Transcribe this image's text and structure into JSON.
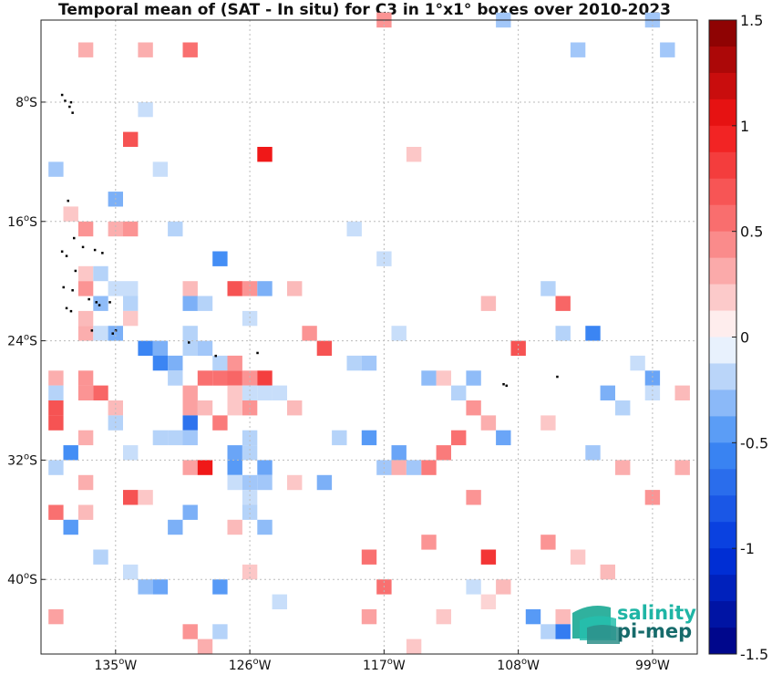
{
  "chart_data": {
    "type": "heatmap",
    "title": "Temporal mean of (SAT - In situ) for C3 in 1°x1° boxes over 2010-2023",
    "x_axis": {
      "range": [
        -140,
        -96
      ],
      "ticks": [
        {
          "value": -135,
          "label": "135"
        },
        {
          "value": -126,
          "label": "126"
        },
        {
          "value": -117,
          "label": "117"
        },
        {
          "value": -108,
          "label": "108"
        },
        {
          "value": -99,
          "label": "99"
        }
      ],
      "suffix": "W"
    },
    "y_axis": {
      "range": [
        -45,
        -2.5
      ],
      "ticks": [
        {
          "value": -8,
          "label": "8"
        },
        {
          "value": -16,
          "label": "16"
        },
        {
          "value": -24,
          "label": "24"
        },
        {
          "value": -32,
          "label": "32"
        },
        {
          "value": -40,
          "label": "40"
        }
      ],
      "suffix": "S"
    },
    "grid": true,
    "colorbar": {
      "range": [
        -1.5,
        1.5
      ],
      "levels": 24,
      "ticks": [
        {
          "value": 1.5,
          "label": "1.5"
        },
        {
          "value": 1,
          "label": "1"
        },
        {
          "value": 0.5,
          "label": "0.5"
        },
        {
          "value": 0,
          "label": "0"
        },
        {
          "value": -0.5,
          "label": "-0.5"
        },
        {
          "value": -1,
          "label": "-1"
        },
        {
          "value": -1.5,
          "label": "-1.5"
        }
      ],
      "placement": "right"
    },
    "cells": [
      [
        -117,
        -2.5,
        0.4
      ],
      [
        -109,
        -2.5,
        -0.25
      ],
      [
        -99,
        -2.5,
        -0.25
      ],
      [
        -137,
        -4.5,
        0.3
      ],
      [
        -133,
        -4.5,
        0.3
      ],
      [
        -130,
        -4.5,
        0.55
      ],
      [
        -104,
        -4.5,
        -0.25
      ],
      [
        -98,
        -4.5,
        -0.25
      ],
      [
        -133,
        -8.5,
        -0.15
      ],
      [
        -134,
        -10.5,
        0.7
      ],
      [
        -125,
        -11.5,
        1.0
      ],
      [
        -115,
        -11.5,
        0.2
      ],
      [
        -139,
        -12.5,
        -0.25
      ],
      [
        -132,
        -12.5,
        -0.15
      ],
      [
        -135,
        -14.5,
        -0.35
      ],
      [
        -138,
        -15.5,
        0.2
      ],
      [
        -137,
        -16.5,
        0.4
      ],
      [
        -135,
        -16.5,
        0.3
      ],
      [
        -134,
        -16.5,
        0.4
      ],
      [
        -131,
        -16.5,
        -0.2
      ],
      [
        -119,
        -16.5,
        -0.15
      ],
      [
        -128,
        -18.5,
        -0.5
      ],
      [
        -117,
        -18.5,
        -0.15
      ],
      [
        -137,
        -19.5,
        0.2
      ],
      [
        -136,
        -19.5,
        -0.2
      ],
      [
        -137,
        -20.5,
        0.4
      ],
      [
        -135,
        -20.5,
        -0.15
      ],
      [
        -134,
        -20.5,
        -0.15
      ],
      [
        -130,
        -20.5,
        0.25
      ],
      [
        -127,
        -20.5,
        0.7
      ],
      [
        -126,
        -20.5,
        0.4
      ],
      [
        -125,
        -20.5,
        -0.35
      ],
      [
        -123,
        -20.5,
        0.25
      ],
      [
        -106,
        -20.5,
        -0.2
      ],
      [
        -136,
        -21.5,
        -0.3
      ],
      [
        -134,
        -21.5,
        -0.2
      ],
      [
        -130,
        -21.5,
        -0.35
      ],
      [
        -129,
        -21.5,
        -0.2
      ],
      [
        -110,
        -21.5,
        0.25
      ],
      [
        -105,
        -21.5,
        0.6
      ],
      [
        -137,
        -22.5,
        0.25
      ],
      [
        -134,
        -22.5,
        0.2
      ],
      [
        -126,
        -22.5,
        -0.15
      ],
      [
        -137,
        -23.5,
        0.3
      ],
      [
        -136,
        -23.5,
        -0.15
      ],
      [
        -135,
        -23.5,
        -0.35
      ],
      [
        -130,
        -23.5,
        -0.2
      ],
      [
        -122,
        -23.5,
        0.4
      ],
      [
        -116,
        -23.5,
        -0.15
      ],
      [
        -105,
        -23.5,
        -0.2
      ],
      [
        -103,
        -23.5,
        -0.55
      ],
      [
        -133,
        -24.5,
        -0.55
      ],
      [
        -132,
        -24.5,
        -0.35
      ],
      [
        -130,
        -24.5,
        -0.2
      ],
      [
        -129,
        -24.5,
        -0.25
      ],
      [
        -121,
        -24.5,
        0.7
      ],
      [
        -108,
        -24.5,
        0.7
      ],
      [
        -132,
        -25.5,
        -0.55
      ],
      [
        -131,
        -25.5,
        -0.35
      ],
      [
        -128,
        -25.5,
        -0.2
      ],
      [
        -127,
        -25.5,
        0.4
      ],
      [
        -119,
        -25.5,
        -0.2
      ],
      [
        -118,
        -25.5,
        -0.25
      ],
      [
        -100,
        -25.5,
        -0.15
      ],
      [
        -131,
        -26.5,
        -0.2
      ],
      [
        -139,
        -26.5,
        0.3
      ],
      [
        -137,
        -26.5,
        0.4
      ],
      [
        -129,
        -26.5,
        0.55
      ],
      [
        -128,
        -26.5,
        0.55
      ],
      [
        -127,
        -26.5,
        0.6
      ],
      [
        -126,
        -26.5,
        0.4
      ],
      [
        -125,
        -26.5,
        0.8
      ],
      [
        -114,
        -26.5,
        -0.3
      ],
      [
        -113,
        -26.5,
        0.2
      ],
      [
        -111,
        -26.5,
        -0.3
      ],
      [
        -99,
        -26.5,
        -0.4
      ],
      [
        -139,
        -27.5,
        -0.2
      ],
      [
        -137,
        -27.5,
        0.4
      ],
      [
        -136,
        -27.5,
        0.6
      ],
      [
        -130,
        -27.5,
        0.35
      ],
      [
        -127,
        -27.5,
        0.2
      ],
      [
        -126,
        -27.5,
        -0.15
      ],
      [
        -125,
        -27.5,
        -0.15
      ],
      [
        -124,
        -27.5,
        -0.15
      ],
      [
        -112,
        -27.5,
        -0.2
      ],
      [
        -102,
        -27.5,
        -0.35
      ],
      [
        -99,
        -27.5,
        -0.15
      ],
      [
        -97,
        -27.5,
        0.25
      ],
      [
        -139,
        -28.5,
        0.7
      ],
      [
        -135,
        -28.5,
        0.25
      ],
      [
        -130,
        -28.5,
        0.35
      ],
      [
        -129,
        -28.5,
        0.25
      ],
      [
        -127,
        -28.5,
        0.2
      ],
      [
        -126,
        -28.5,
        0.4
      ],
      [
        -123,
        -28.5,
        0.25
      ],
      [
        -111,
        -28.5,
        0.4
      ],
      [
        -101,
        -28.5,
        -0.2
      ],
      [
        -139,
        -29.5,
        0.7
      ],
      [
        -135,
        -29.5,
        -0.2
      ],
      [
        -130,
        -29.5,
        -0.65
      ],
      [
        -128,
        -29.5,
        0.5
      ],
      [
        -110,
        -29.5,
        0.3
      ],
      [
        -106,
        -29.5,
        0.2
      ],
      [
        -137,
        -30.5,
        0.3
      ],
      [
        -132,
        -30.5,
        -0.2
      ],
      [
        -131,
        -30.5,
        -0.2
      ],
      [
        -130,
        -30.5,
        -0.25
      ],
      [
        -126,
        -30.5,
        -0.2
      ],
      [
        -120,
        -30.5,
        -0.2
      ],
      [
        -118,
        -30.5,
        -0.45
      ],
      [
        -112,
        -30.5,
        0.55
      ],
      [
        -109,
        -30.5,
        -0.4
      ],
      [
        -138,
        -31.5,
        -0.5
      ],
      [
        -134,
        -31.5,
        -0.15
      ],
      [
        -127,
        -31.5,
        -0.4
      ],
      [
        -126,
        -31.5,
        -0.2
      ],
      [
        -116,
        -31.5,
        -0.4
      ],
      [
        -113,
        -31.5,
        0.5
      ],
      [
        -103,
        -31.5,
        -0.25
      ],
      [
        -139,
        -32.5,
        -0.2
      ],
      [
        -130,
        -32.5,
        0.35
      ],
      [
        -129,
        -32.5,
        1.0
      ],
      [
        -127,
        -32.5,
        -0.45
      ],
      [
        -125,
        -32.5,
        -0.4
      ],
      [
        -117,
        -32.5,
        -0.25
      ],
      [
        -116,
        -32.5,
        0.3
      ],
      [
        -115,
        -32.5,
        -0.25
      ],
      [
        -114,
        -32.5,
        0.5
      ],
      [
        -101,
        -32.5,
        0.3
      ],
      [
        -97,
        -32.5,
        0.3
      ],
      [
        -137,
        -33.5,
        0.3
      ],
      [
        -127,
        -33.5,
        -0.15
      ],
      [
        -126,
        -33.5,
        -0.25
      ],
      [
        -125,
        -33.5,
        -0.25
      ],
      [
        -123,
        -33.5,
        0.2
      ],
      [
        -121,
        -33.5,
        -0.35
      ],
      [
        -134,
        -34.5,
        0.7
      ],
      [
        -133,
        -34.5,
        0.2
      ],
      [
        -126,
        -34.5,
        -0.15
      ],
      [
        -111,
        -34.5,
        0.4
      ],
      [
        -99,
        -34.5,
        0.4
      ],
      [
        -139,
        -35.5,
        0.55
      ],
      [
        -137,
        -35.5,
        0.25
      ],
      [
        -130,
        -35.5,
        -0.35
      ],
      [
        -126,
        -35.5,
        -0.2
      ],
      [
        -138,
        -36.5,
        -0.45
      ],
      [
        -131,
        -36.5,
        -0.35
      ],
      [
        -127,
        -36.5,
        0.25
      ],
      [
        -125,
        -36.5,
        -0.3
      ],
      [
        -114,
        -37.5,
        0.4
      ],
      [
        -106,
        -37.5,
        0.4
      ],
      [
        -136,
        -38.5,
        -0.2
      ],
      [
        -118,
        -38.5,
        0.55
      ],
      [
        -110,
        -38.5,
        0.85
      ],
      [
        -104,
        -38.5,
        0.2
      ],
      [
        -134,
        -39.5,
        -0.15
      ],
      [
        -126,
        -39.5,
        0.2
      ],
      [
        -102,
        -39.5,
        0.25
      ],
      [
        -133,
        -40.5,
        -0.3
      ],
      [
        -132,
        -40.5,
        -0.4
      ],
      [
        -128,
        -40.5,
        -0.45
      ],
      [
        -117,
        -40.5,
        0.55
      ],
      [
        -111,
        -40.5,
        -0.15
      ],
      [
        -109,
        -40.5,
        0.25
      ],
      [
        -124,
        -41.5,
        -0.15
      ],
      [
        -110,
        -41.5,
        0.15
      ],
      [
        -139,
        -42.5,
        0.35
      ],
      [
        -118,
        -42.5,
        0.35
      ],
      [
        -113,
        -42.5,
        0.2
      ],
      [
        -107,
        -42.5,
        -0.45
      ],
      [
        -105,
        -42.5,
        0.25
      ],
      [
        -130,
        -43.5,
        0.4
      ],
      [
        -128,
        -43.5,
        -0.2
      ],
      [
        -106,
        -43.5,
        -0.2
      ],
      [
        -105,
        -43.5,
        -0.6
      ],
      [
        -129,
        -44.5,
        0.3
      ],
      [
        -115,
        -44.5,
        0.2
      ]
    ],
    "land_points": [
      [
        -138.6,
        -7.5
      ],
      [
        -138.4,
        -7.9
      ],
      [
        -138.0,
        -8.0
      ],
      [
        -138.1,
        -8.3
      ],
      [
        -137.9,
        -8.7
      ],
      [
        -138.2,
        -14.6
      ],
      [
        -137.8,
        -17.1
      ],
      [
        -138.6,
        -18.0
      ],
      [
        -138.3,
        -18.3
      ],
      [
        -137.2,
        -17.7
      ],
      [
        -137.7,
        -19.3
      ],
      [
        -136.4,
        -17.9
      ],
      [
        -135.9,
        -18.1
      ],
      [
        -138.5,
        -20.4
      ],
      [
        -137.9,
        -20.6
      ],
      [
        -136.3,
        -21.4
      ],
      [
        -136.1,
        -21.6
      ],
      [
        -135.4,
        -21.4
      ],
      [
        -136.8,
        -21.2
      ],
      [
        -138.3,
        -21.8
      ],
      [
        -138.0,
        -22.0
      ],
      [
        -135.0,
        -23.3
      ],
      [
        -135.2,
        -23.5
      ],
      [
        -136.6,
        -23.3
      ],
      [
        -130.1,
        -24.1
      ],
      [
        -128.3,
        -25.0
      ],
      [
        -125.5,
        -24.8
      ],
      [
        -109.0,
        -26.9
      ],
      [
        -108.8,
        -27.0
      ],
      [
        -105.4,
        -26.4
      ]
    ]
  },
  "logo": {
    "line1": "salinity",
    "line2": "pi-mep",
    "color1": "#1fb5a5",
    "color2": "#176b6b"
  }
}
